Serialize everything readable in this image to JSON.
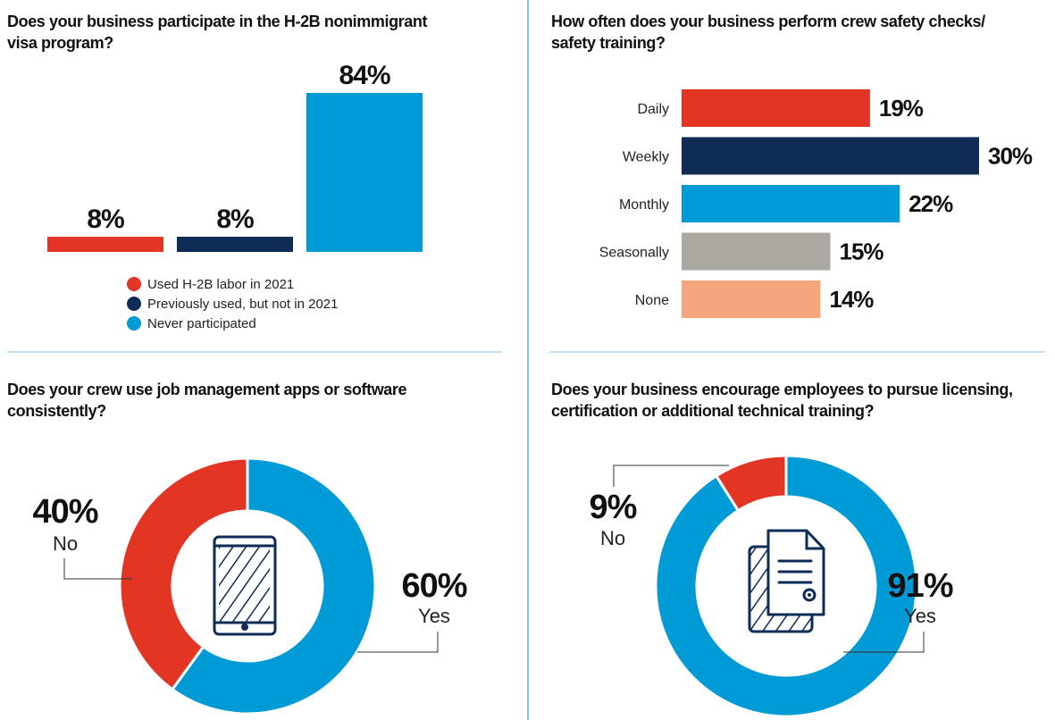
{
  "colors": {
    "red": "#e23524",
    "navy": "#0e2c55",
    "blue": "#009bd6",
    "gray": "#aaa8a1",
    "salmon": "#f4a57b",
    "divider": "#7cc4ea"
  },
  "chart_data": [
    {
      "type": "bar",
      "title": "Does your business participate in the H-2B nonimmigrant visa program?",
      "title_lines": [
        "Does your business participate in the H-2B nonimmigrant",
        "visa program?"
      ],
      "categories": [
        "Used H-2B labor in 2021",
        "Previously used, but not in 2021",
        "Never participated"
      ],
      "values": [
        8,
        8,
        84
      ],
      "labels": [
        "8%",
        "8%",
        "84%"
      ],
      "colors": [
        "#e23524",
        "#0e2c55",
        "#009bd6"
      ],
      "legend_position": "bottom"
    },
    {
      "type": "bar",
      "orientation": "horizontal",
      "title": "How often does your business perform crew safety checks/ safety training?",
      "title_lines": [
        "How often does your business perform crew safety checks/",
        "safety training?"
      ],
      "categories": [
        "Daily",
        "Weekly",
        "Monthly",
        "Seasonally",
        "None"
      ],
      "values": [
        19,
        30,
        22,
        15,
        14
      ],
      "labels": [
        "19%",
        "30%",
        "22%",
        "15%",
        "14%"
      ],
      "colors": [
        "#e23524",
        "#0e2c55",
        "#009bd6",
        "#aaa8a1",
        "#f4a57b"
      ]
    },
    {
      "type": "pie",
      "donut": true,
      "icon": "smartphone-icon",
      "title": "Does your crew use job management apps or software consistently?",
      "title_lines": [
        "Does your crew use job management apps or software",
        "consistently?"
      ],
      "categories": [
        "Yes",
        "No"
      ],
      "values": [
        60,
        40
      ],
      "labels": [
        "60%",
        "40%"
      ],
      "colors": [
        "#009bd6",
        "#e23524"
      ]
    },
    {
      "type": "pie",
      "donut": true,
      "icon": "document-icon",
      "title": "Does your business encourage employees to pursue licensing, certification or additional technical training?",
      "title_lines": [
        "Does your business encourage employees to pursue licensing,",
        "certification or additional technical training?"
      ],
      "categories": [
        "Yes",
        "No"
      ],
      "values": [
        91,
        9
      ],
      "labels": [
        "91%",
        "9%"
      ],
      "colors": [
        "#009bd6",
        "#e23524"
      ]
    }
  ]
}
